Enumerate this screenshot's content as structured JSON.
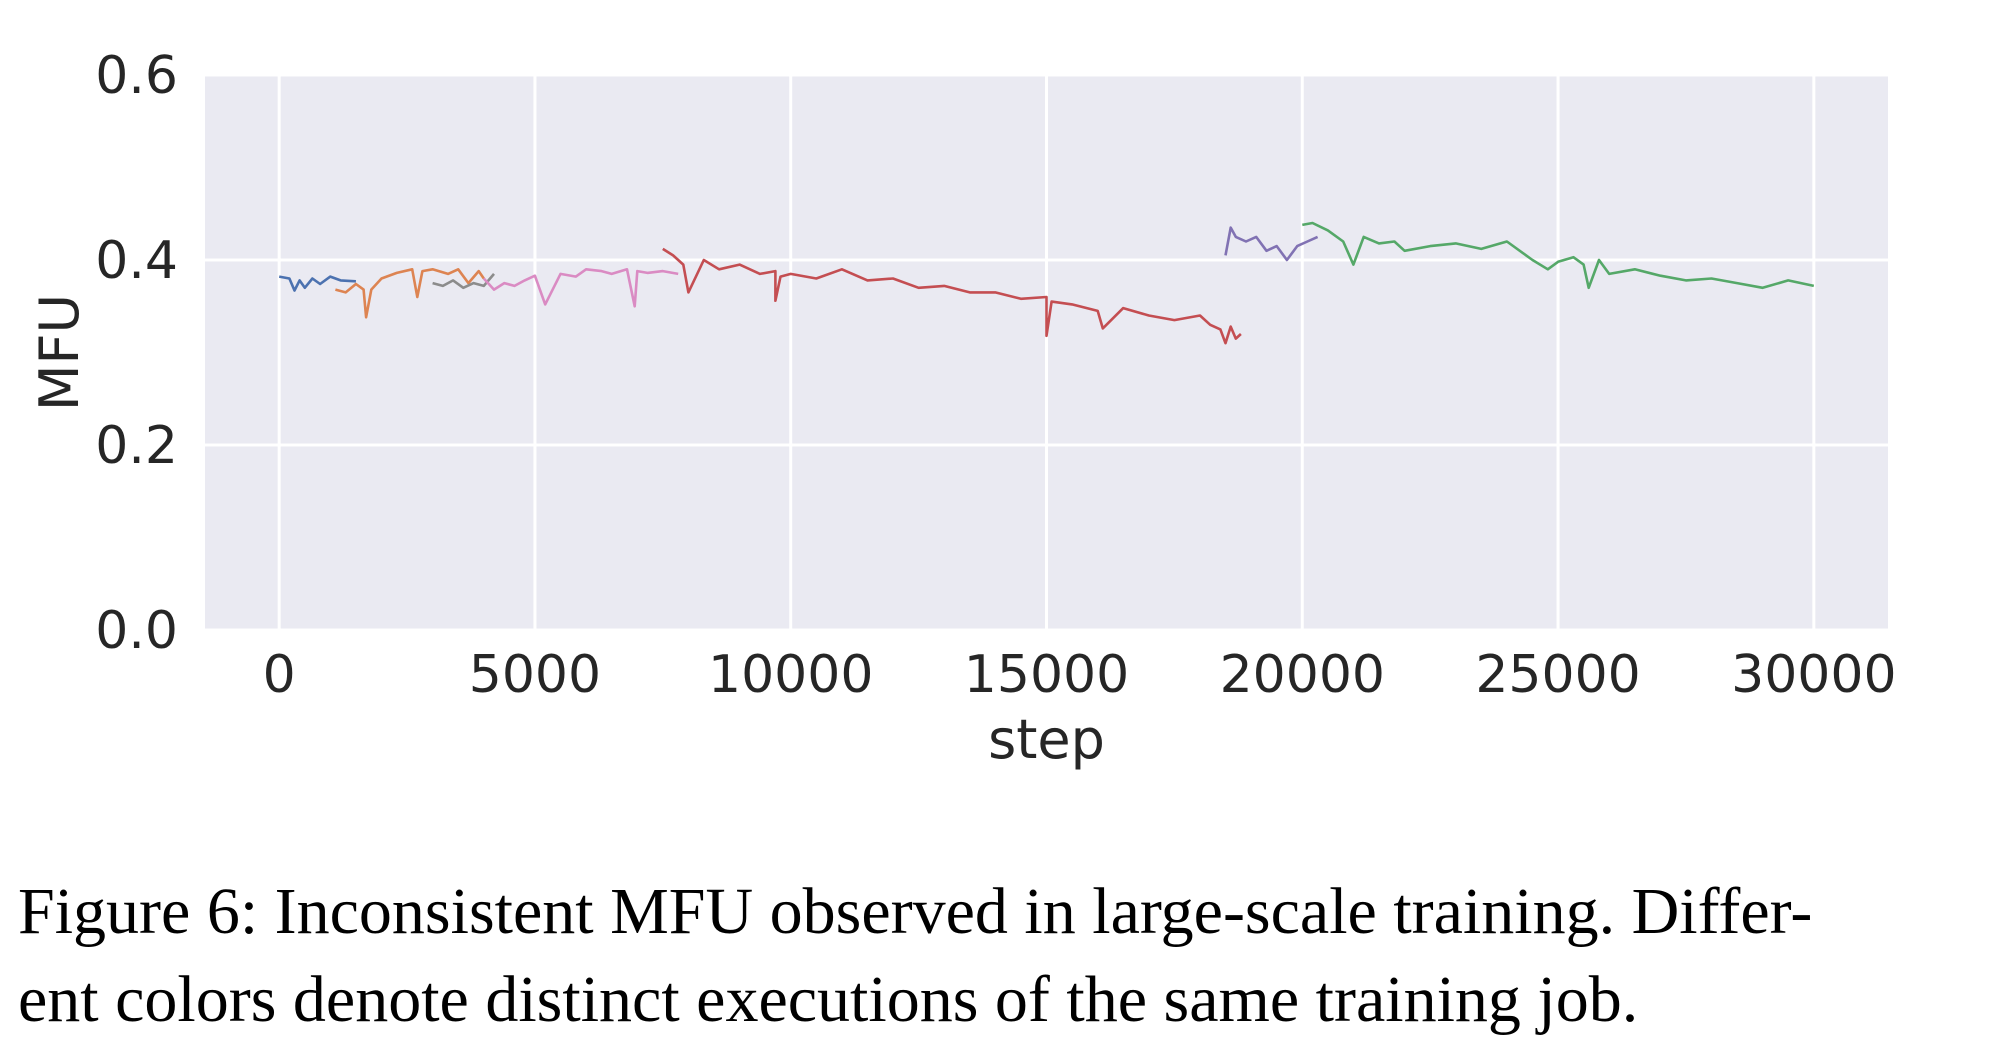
{
  "chart_data": {
    "type": "line",
    "xlabel": "step",
    "ylabel": "MFU",
    "xlim": [
      -1450,
      31450
    ],
    "ylim": [
      0.0,
      0.6
    ],
    "xticks": [
      0,
      5000,
      10000,
      15000,
      20000,
      25000,
      30000
    ],
    "yticks": [
      0.0,
      0.2,
      0.4,
      0.6
    ],
    "xtick_labels": [
      "0",
      "5000",
      "10000",
      "15000",
      "20000",
      "25000",
      "30000"
    ],
    "ytick_labels": [
      "0.0",
      "0.2",
      "0.4",
      "0.6"
    ],
    "grid": true,
    "legend": "none",
    "background": "#eaeaf2",
    "series": [
      {
        "color": "#4c72b0",
        "x": [
          0,
          200,
          300,
          400,
          500,
          650,
          800,
          1000,
          1200,
          1500
        ],
        "y": [
          0.382,
          0.38,
          0.367,
          0.378,
          0.37,
          0.38,
          0.374,
          0.382,
          0.378,
          0.377
        ]
      },
      {
        "color": "#dd8452",
        "x": [
          1100,
          1300,
          1500,
          1650,
          1700,
          1800,
          2000,
          2300,
          2600,
          2700,
          2800,
          3000,
          3300,
          3500,
          3700,
          3900,
          4000
        ],
        "y": [
          0.368,
          0.365,
          0.374,
          0.368,
          0.338,
          0.368,
          0.38,
          0.386,
          0.39,
          0.36,
          0.388,
          0.39,
          0.385,
          0.39,
          0.375,
          0.388,
          0.38
        ]
      },
      {
        "color": "#8c8c8c",
        "x": [
          3000,
          3200,
          3400,
          3600,
          3800,
          4000,
          4200
        ],
        "y": [
          0.375,
          0.372,
          0.378,
          0.37,
          0.375,
          0.372,
          0.385
        ]
      },
      {
        "color": "#da8bc3",
        "x": [
          4000,
          4200,
          4400,
          4600,
          4800,
          5000,
          5200,
          5500,
          5800,
          6000,
          6300,
          6500,
          6800,
          6950,
          7000,
          7200,
          7500,
          7800
        ],
        "y": [
          0.38,
          0.368,
          0.375,
          0.372,
          0.378,
          0.383,
          0.352,
          0.385,
          0.382,
          0.39,
          0.388,
          0.385,
          0.39,
          0.35,
          0.388,
          0.386,
          0.388,
          0.385
        ]
      },
      {
        "color": "#c44e52",
        "x": [
          7500,
          7700,
          7900,
          8000,
          8300,
          8600,
          9000,
          9400,
          9700,
          9700,
          9800,
          10000,
          10500,
          11000,
          11500,
          12000,
          12500,
          13000,
          13500,
          14000,
          14500,
          15000,
          15000,
          15100,
          15500,
          16000,
          16100,
          16500,
          17000,
          17500,
          18000,
          18200,
          18400,
          18500,
          18600,
          18700,
          18800
        ],
        "y": [
          0.412,
          0.405,
          0.395,
          0.365,
          0.4,
          0.39,
          0.395,
          0.385,
          0.388,
          0.356,
          0.382,
          0.385,
          0.38,
          0.39,
          0.378,
          0.38,
          0.37,
          0.372,
          0.365,
          0.365,
          0.358,
          0.36,
          0.318,
          0.355,
          0.352,
          0.345,
          0.326,
          0.348,
          0.34,
          0.335,
          0.34,
          0.33,
          0.325,
          0.31,
          0.328,
          0.315,
          0.32
        ]
      },
      {
        "color": "#8172b3",
        "x": [
          18500,
          18600,
          18700,
          18900,
          19100,
          19300,
          19500,
          19700,
          19900,
          20100,
          20300
        ],
        "y": [
          0.405,
          0.435,
          0.425,
          0.42,
          0.425,
          0.41,
          0.415,
          0.4,
          0.415,
          0.42,
          0.425
        ]
      },
      {
        "color": "#55a868",
        "x": [
          20000,
          20200,
          20500,
          20800,
          21000,
          21200,
          21500,
          21800,
          22000,
          22500,
          23000,
          23500,
          24000,
          24500,
          24800,
          25000,
          25300,
          25500,
          25600,
          25800,
          26000,
          26500,
          27000,
          27500,
          28000,
          28500,
          29000,
          29500,
          30000
        ],
        "y": [
          0.438,
          0.44,
          0.432,
          0.42,
          0.395,
          0.425,
          0.418,
          0.42,
          0.41,
          0.415,
          0.418,
          0.412,
          0.42,
          0.4,
          0.39,
          0.398,
          0.403,
          0.395,
          0.37,
          0.4,
          0.385,
          0.39,
          0.383,
          0.378,
          0.38,
          0.375,
          0.37,
          0.378,
          0.372
        ]
      }
    ]
  },
  "caption": {
    "line1": "Figure 6: Inconsistent MFU observed in large-scale training. Differ-",
    "line2": "ent colors denote distinct executions of the same training job."
  }
}
